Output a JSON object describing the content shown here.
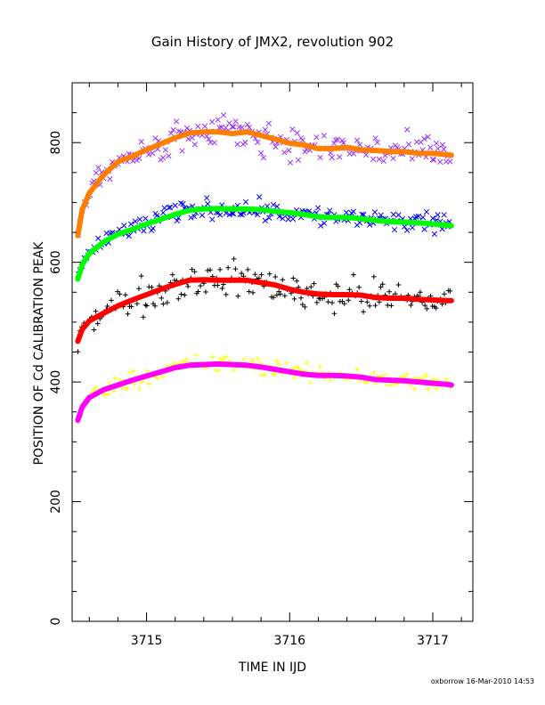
{
  "chart_data": {
    "type": "scatter",
    "title": "Gain History of JMX2, revolution 902",
    "xlabel": "TIME IN IJD",
    "ylabel": "POSITION OF Cd CALIBRATION PEAK",
    "xlim": [
      3714.48,
      3717.28
    ],
    "ylim": [
      0,
      900
    ],
    "x_ticks": [
      "3715",
      "3716",
      "3717"
    ],
    "x_tick_values": [
      3715,
      3716,
      3717
    ],
    "y_ticks": [
      "0",
      "200",
      "400",
      "600",
      "800"
    ],
    "y_tick_values": [
      0,
      200,
      400,
      600,
      800
    ],
    "grid": false,
    "legend": "none",
    "series": [
      {
        "kind": "points",
        "marker": "x",
        "color": "#9933ff",
        "scatter": 22,
        "x": [
          3714.52,
          3714.55,
          3714.6,
          3714.7,
          3714.8,
          3714.9,
          3715.0,
          3715.1,
          3715.2,
          3715.3,
          3715.4,
          3715.5,
          3715.6,
          3715.7,
          3715.8,
          3715.9,
          3716.0,
          3716.1,
          3716.2,
          3716.3,
          3716.4,
          3716.5,
          3716.6,
          3716.7,
          3716.8,
          3716.9,
          3717.0,
          3717.1,
          3717.13
        ],
        "y": [
          650,
          690,
          718,
          748,
          770,
          778,
          788,
          798,
          808,
          816,
          818,
          818,
          815,
          818,
          812,
          806,
          799,
          796,
          790,
          790,
          792,
          788,
          787,
          785,
          785,
          782,
          782,
          780,
          779
        ]
      },
      {
        "kind": "trend",
        "color": "#ff8000",
        "x": [
          3714.52,
          3714.55,
          3714.6,
          3714.7,
          3714.8,
          3714.9,
          3715.0,
          3715.1,
          3715.2,
          3715.3,
          3715.4,
          3715.5,
          3715.6,
          3715.7,
          3715.8,
          3715.9,
          3716.0,
          3716.1,
          3716.2,
          3716.3,
          3716.4,
          3716.5,
          3716.6,
          3716.7,
          3716.8,
          3716.9,
          3717.0,
          3717.1,
          3717.13
        ],
        "y": [
          645,
          688,
          716,
          746,
          768,
          777,
          788,
          798,
          808,
          816,
          818,
          818,
          815,
          818,
          812,
          806,
          799,
          796,
          790,
          790,
          792,
          788,
          787,
          785,
          785,
          782,
          782,
          780,
          779
        ]
      },
      {
        "kind": "points",
        "marker": "x",
        "color": "#0000ff",
        "scatter": 14,
        "x": [
          3714.52,
          3714.55,
          3714.6,
          3714.7,
          3714.8,
          3714.9,
          3715.0,
          3715.1,
          3715.2,
          3715.3,
          3715.4,
          3715.5,
          3715.6,
          3715.7,
          3715.8,
          3715.9,
          3716.0,
          3716.1,
          3716.2,
          3716.3,
          3716.4,
          3716.5,
          3716.6,
          3716.7,
          3716.8,
          3716.9,
          3717.0,
          3717.1,
          3717.13
        ],
        "y": [
          575,
          598,
          616,
          635,
          648,
          656,
          664,
          672,
          681,
          688,
          690,
          690,
          690,
          690,
          688,
          685,
          683,
          680,
          676,
          675,
          675,
          673,
          670,
          668,
          667,
          666,
          664,
          662,
          661
        ]
      },
      {
        "kind": "trend",
        "color": "#00ff00",
        "x": [
          3714.52,
          3714.55,
          3714.6,
          3714.7,
          3714.8,
          3714.9,
          3715.0,
          3715.1,
          3715.2,
          3715.3,
          3715.4,
          3715.5,
          3715.6,
          3715.7,
          3715.8,
          3715.9,
          3716.0,
          3716.1,
          3716.2,
          3716.3,
          3716.4,
          3716.5,
          3716.6,
          3716.7,
          3716.8,
          3716.9,
          3717.0,
          3717.1,
          3717.13
        ],
        "y": [
          572,
          596,
          615,
          634,
          647,
          655,
          664,
          672,
          680,
          687,
          689,
          690,
          689,
          689,
          688,
          685,
          683,
          680,
          676,
          675,
          675,
          673,
          670,
          668,
          667,
          666,
          664,
          662,
          661
        ]
      },
      {
        "kind": "points",
        "marker": "plus",
        "color": "#000000",
        "scatter": 24,
        "x": [
          3714.52,
          3714.55,
          3714.6,
          3714.7,
          3714.8,
          3714.9,
          3715.0,
          3715.1,
          3715.2,
          3715.3,
          3715.4,
          3715.5,
          3715.6,
          3715.7,
          3715.8,
          3715.9,
          3716.0,
          3716.1,
          3716.2,
          3716.3,
          3716.4,
          3716.5,
          3716.6,
          3716.7,
          3716.8,
          3716.9,
          3717.0,
          3717.1,
          3717.13
        ],
        "y": [
          470,
          490,
          503,
          516,
          528,
          538,
          546,
          555,
          563,
          570,
          571,
          570,
          570,
          570,
          566,
          562,
          555,
          550,
          547,
          546,
          546,
          545,
          541,
          540,
          540,
          538,
          537,
          536,
          536
        ]
      },
      {
        "kind": "trend",
        "color": "#ff0000",
        "x": [
          3714.52,
          3714.55,
          3714.6,
          3714.7,
          3714.8,
          3714.9,
          3715.0,
          3715.1,
          3715.2,
          3715.3,
          3715.4,
          3715.5,
          3715.6,
          3715.7,
          3715.8,
          3715.9,
          3716.0,
          3716.1,
          3716.2,
          3716.3,
          3716.4,
          3716.5,
          3716.6,
          3716.7,
          3716.8,
          3716.9,
          3717.0,
          3717.1,
          3717.13
        ],
        "y": [
          468,
          488,
          502,
          515,
          527,
          537,
          546,
          555,
          563,
          570,
          571,
          570,
          570,
          570,
          566,
          562,
          555,
          550,
          547,
          546,
          546,
          545,
          541,
          540,
          540,
          538,
          537,
          536,
          536
        ]
      },
      {
        "kind": "points",
        "marker": "plus",
        "color": "#ffff00",
        "scatter": 12,
        "x": [
          3714.52,
          3714.55,
          3714.6,
          3714.7,
          3714.8,
          3714.9,
          3715.0,
          3715.1,
          3715.2,
          3715.3,
          3715.4,
          3715.5,
          3715.6,
          3715.7,
          3715.8,
          3715.9,
          3716.0,
          3716.1,
          3716.2,
          3716.3,
          3716.4,
          3716.5,
          3716.6,
          3716.7,
          3716.8,
          3716.9,
          3717.0,
          3717.1,
          3717.13
        ],
        "y": [
          338,
          360,
          375,
          388,
          396,
          404,
          411,
          418,
          425,
          429,
          430,
          431,
          430,
          429,
          426,
          422,
          418,
          414,
          412,
          412,
          411,
          409,
          405,
          404,
          403,
          401,
          399,
          397,
          396
        ]
      },
      {
        "kind": "trend",
        "color": "#ff00ff",
        "x": [
          3714.52,
          3714.55,
          3714.6,
          3714.7,
          3714.8,
          3714.9,
          3715.0,
          3715.1,
          3715.2,
          3715.3,
          3715.4,
          3715.5,
          3715.6,
          3715.7,
          3715.8,
          3715.9,
          3716.0,
          3716.1,
          3716.2,
          3716.3,
          3716.4,
          3716.5,
          3716.6,
          3716.7,
          3716.8,
          3716.9,
          3717.0,
          3717.1,
          3717.13
        ],
        "y": [
          336,
          358,
          374,
          387,
          395,
          403,
          410,
          417,
          424,
          428,
          429,
          430,
          429,
          428,
          425,
          421,
          417,
          413,
          411,
          411,
          410,
          408,
          404,
          403,
          402,
          400,
          398,
          396,
          395
        ]
      }
    ]
  },
  "footer": {
    "credit": "oxborrow 16-Mar-2010 14:53"
  }
}
